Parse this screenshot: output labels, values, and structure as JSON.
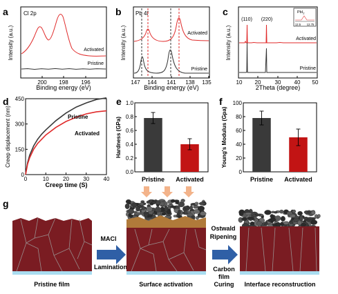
{
  "panels": {
    "a": {
      "letter": "a",
      "label": "Cl 2p",
      "xlabel": "Binding energy (eV)",
      "ylabel": "Intensity (a.u.)",
      "xticks": [
        "200",
        "198",
        "196"
      ],
      "curves": [
        "Activated",
        "Pristine"
      ]
    },
    "b": {
      "letter": "b",
      "label": "Pb 4f",
      "xlabel": "Binding energy (eV)",
      "ylabel": "Intensity (a.u.)",
      "xticks": [
        "147",
        "144",
        "141",
        "138",
        "135"
      ],
      "curves": [
        "Activated",
        "Pristine"
      ]
    },
    "c": {
      "letter": "c",
      "xlabel": "2Theta (degree)",
      "ylabel": "Intensity (a.u.)",
      "xticks": [
        "10",
        "20",
        "30",
        "40",
        "50"
      ],
      "peaks": [
        "(110)",
        "(220)"
      ],
      "curves": [
        "Activated",
        "Pristine"
      ],
      "inset": {
        "label": "PbI",
        "label_sub": "2",
        "ticks": [
          "12.5",
          "12.75"
        ]
      }
    },
    "g": {
      "letter": "g",
      "steps": [
        "MACl",
        "Lamination",
        "Ostwald",
        "Ripening",
        "Carbon",
        "film",
        "Curing"
      ],
      "captions": [
        "Pristine film",
        "Surface activation",
        "Interface reconstruction"
      ]
    }
  },
  "chart_data": [
    {
      "id": "d",
      "type": "line",
      "letter": "d",
      "xlabel": "Creep time (S)",
      "ylabel": "Creep displacement (nm)",
      "xlim": [
        0,
        40
      ],
      "ylim": [
        0,
        450
      ],
      "xticks": [
        0,
        10,
        20,
        30,
        40
      ],
      "yticks": [
        0,
        150,
        300,
        450
      ],
      "series": [
        {
          "name": "Pristine",
          "color": "#3a3a3a",
          "x": [
            0,
            1,
            2,
            4,
            6,
            8,
            10,
            15,
            20,
            25,
            30,
            35,
            40
          ],
          "y": [
            0,
            70,
            115,
            170,
            210,
            240,
            265,
            320,
            365,
            400,
            425,
            445,
            455
          ]
        },
        {
          "name": "Activated",
          "color": "#e02a2a",
          "x": [
            0,
            1,
            2,
            4,
            6,
            8,
            10,
            15,
            20,
            25,
            30,
            35,
            40
          ],
          "y": [
            0,
            62,
            100,
            150,
            185,
            210,
            235,
            280,
            315,
            340,
            360,
            372,
            378
          ]
        }
      ]
    },
    {
      "id": "e",
      "type": "bar",
      "letter": "e",
      "categories": [
        "Pristine",
        "Activated"
      ],
      "values": [
        0.78,
        0.4
      ],
      "errors": [
        0.08,
        0.08
      ],
      "colors": [
        "#3a3a3a",
        "#c21414"
      ],
      "ylabel": "Hardness (GPa)",
      "ylim": [
        0,
        1.0
      ],
      "yticks": [
        "0.0",
        "0.2",
        "0.4",
        "0.6",
        "0.8",
        "1.0"
      ]
    },
    {
      "id": "f",
      "type": "bar",
      "letter": "f",
      "categories": [
        "Pristine",
        "Activated"
      ],
      "values": [
        78,
        50
      ],
      "errors": [
        10,
        12
      ],
      "colors": [
        "#3a3a3a",
        "#c21414"
      ],
      "ylabel": "Young's Modulus (Gpa)",
      "ylim": [
        0,
        100
      ],
      "yticks": [
        "0",
        "20",
        "40",
        "60",
        "80",
        "100"
      ]
    }
  ]
}
